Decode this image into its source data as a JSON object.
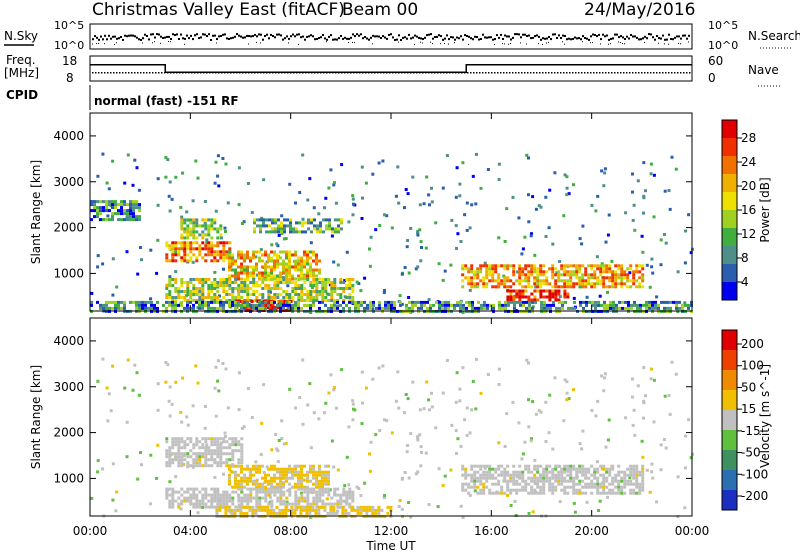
{
  "header": {
    "title": "Christmas Valley East (fitACF)",
    "beam": "Beam 00",
    "date": "24/May/2016"
  },
  "status_panels": {
    "nsky_label": "N.Sky",
    "nsky_ticks": [
      "10^5",
      "10^0"
    ],
    "nsearch_label": "N.Search",
    "nsearch_ticks": [
      "10^5",
      "10^0"
    ],
    "freq_label_1": "Freq.",
    "freq_label_2": "[MHz]",
    "freq_ticks": [
      "18",
      "8"
    ],
    "nave_label": "Nave",
    "nave_ticks": [
      "60",
      "0"
    ],
    "cpid_label": "CPID",
    "cpid_text": "normal (fast) -151 RF",
    "freq_steps": [
      {
        "start_h": 0,
        "end_h": 3,
        "mhz": 14.5
      },
      {
        "start_h": 3,
        "end_h": 15,
        "mhz": 11.5
      },
      {
        "start_h": 15,
        "end_h": 24,
        "mhz": 14.5
      }
    ]
  },
  "axes": {
    "x_label": "Time UT",
    "x_ticks": [
      "00:00",
      "04:00",
      "08:00",
      "12:00",
      "16:00",
      "20:00",
      "00:00"
    ],
    "y_label": "Slant Range [km]",
    "y_ticks": [
      "1000",
      "2000",
      "3000",
      "4000"
    ]
  },
  "colorbars": {
    "power_title": "Power [dB]",
    "power_ticks": [
      "4",
      "8",
      "12",
      "16",
      "20",
      "24",
      "28"
    ],
    "power_colors": [
      "#0000f0",
      "#2a5fae",
      "#4e8f8a",
      "#3fae3f",
      "#a0d020",
      "#f0e000",
      "#f0b000",
      "#f07000",
      "#f03000",
      "#e00000"
    ],
    "velocity_title": "Velocity [m s^-1]",
    "velocity_ticks": [
      "200",
      "100",
      "50",
      "15",
      "-15",
      "-50",
      "-100",
      "-200"
    ],
    "velocity_colors": [
      "#1a2fbf",
      "#2a6fb0",
      "#3f8f5f",
      "#5fc040",
      "#c0c0c0",
      "#f0c000",
      "#f08a00",
      "#f04000",
      "#e00000"
    ]
  },
  "chart_data": [
    {
      "type": "heatmap",
      "title": "Power [dB]",
      "xlabel": "Time UT",
      "ylabel": "Slant Range [km]",
      "xlim": [
        0,
        24
      ],
      "ylim": [
        180,
        4500
      ],
      "clim": [
        0,
        30
      ],
      "regions": [
        {
          "t0": 3.0,
          "t1": 5.6,
          "r0": 1250,
          "r1": 1700,
          "value": 22
        },
        {
          "t0": 3.6,
          "t1": 5.2,
          "r0": 1800,
          "r1": 2200,
          "value": 14
        },
        {
          "t0": 5.5,
          "t1": 9.2,
          "r0": 900,
          "r1": 1500,
          "value": 18
        },
        {
          "t0": 6.5,
          "t1": 10.0,
          "r0": 1900,
          "r1": 2200,
          "value": 10
        },
        {
          "t0": 3.0,
          "t1": 10.5,
          "r0": 400,
          "r1": 900,
          "value": 14
        },
        {
          "t0": 5.8,
          "t1": 8.0,
          "r0": 200,
          "r1": 420,
          "value": 28
        },
        {
          "t0": 14.8,
          "t1": 22.0,
          "r0": 700,
          "r1": 1200,
          "value": 20
        },
        {
          "t0": 16.6,
          "t1": 19.0,
          "r0": 400,
          "r1": 650,
          "value": 27
        },
        {
          "t0": 0.0,
          "t1": 2.0,
          "r0": 2200,
          "r1": 2600,
          "value": 8
        },
        {
          "t0": 0.0,
          "t1": 24.0,
          "r0": 200,
          "r1": 400,
          "value": 8
        }
      ]
    },
    {
      "type": "heatmap",
      "title": "Velocity [m s^-1]",
      "xlabel": "Time UT",
      "ylabel": "Slant Range [km]",
      "xlim": [
        0,
        24
      ],
      "ylim": [
        180,
        4500
      ],
      "clim": [
        -250,
        250
      ],
      "regions": [
        {
          "t0": 3.0,
          "t1": 6.0,
          "r0": 1300,
          "r1": 1900,
          "value": 0
        },
        {
          "t0": 5.5,
          "t1": 9.5,
          "r0": 800,
          "r1": 1300,
          "value": 40
        },
        {
          "t0": 14.8,
          "t1": 22.0,
          "r0": 700,
          "r1": 1300,
          "value": 0
        },
        {
          "t0": 3.0,
          "t1": 10.5,
          "r0": 400,
          "r1": 800,
          "value": 0
        },
        {
          "t0": 5.0,
          "t1": 12.0,
          "r0": 200,
          "r1": 400,
          "value": 40
        }
      ]
    }
  ]
}
